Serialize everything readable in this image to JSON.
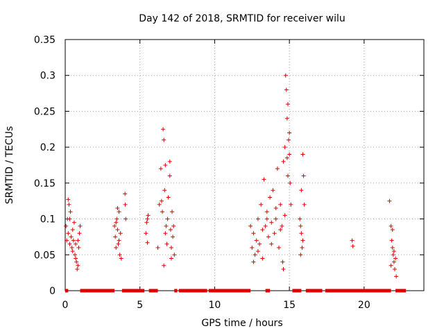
{
  "chart_data": {
    "type": "scatter",
    "title": "Day 142 of 2018, SRMTID for receiver wilu",
    "xlabel": "GPS time / hours",
    "ylabel": "SRMTID / TECUs",
    "xlim": [
      0,
      24
    ],
    "ylim": [
      0,
      0.35
    ],
    "xticks": [
      0,
      5,
      10,
      15,
      20
    ],
    "xtick_labels": [
      "0",
      "5",
      "10",
      "15",
      "20"
    ],
    "yticks": [
      0,
      0.05,
      0.1,
      0.15,
      0.2,
      0.25,
      0.3,
      0.35
    ],
    "ytick_labels": [
      "0",
      "0.05",
      "0.1",
      "0.15",
      "0.2",
      "0.25",
      "0.3",
      "0.35"
    ],
    "grid": true,
    "marker": "+",
    "series_color": "#dd0000",
    "series": [
      {
        "name": "SRMTID",
        "points": [
          [
            0.05,
            0.09
          ],
          [
            0.1,
            0.07
          ],
          [
            0.15,
            0.1
          ],
          [
            0.2,
            0.08
          ],
          [
            0.25,
            0.12
          ],
          [
            0.3,
            0.065
          ],
          [
            0.35,
            0.11
          ],
          [
            0.4,
            0.075
          ],
          [
            0.45,
            0.06
          ],
          [
            0.5,
            0.085
          ],
          [
            0.55,
            0.07
          ],
          [
            0.6,
            0.095
          ],
          [
            0.65,
            0.05
          ],
          [
            0.7,
            0.065
          ],
          [
            0.75,
            0.04
          ],
          [
            0.8,
            0.03
          ],
          [
            0.85,
            0.07
          ],
          [
            0.9,
            0.06
          ],
          [
            0.95,
            0.08
          ],
          [
            1.0,
            0.09
          ],
          [
            0.2,
            0.127
          ],
          [
            0.3,
            0.1
          ],
          [
            0.5,
            0.055
          ],
          [
            0.7,
            0.045
          ],
          [
            0.85,
            0.035
          ],
          [
            3.3,
            0.09
          ],
          [
            3.35,
            0.075
          ],
          [
            3.4,
            0.06
          ],
          [
            3.45,
            0.1
          ],
          [
            3.5,
            0.085
          ],
          [
            3.55,
            0.065
          ],
          [
            3.6,
            0.11
          ],
          [
            3.65,
            0.05
          ],
          [
            3.7,
            0.08
          ],
          [
            3.75,
            0.045
          ],
          [
            3.5,
            0.115
          ],
          [
            3.6,
            0.07
          ],
          [
            3.4,
            0.095
          ],
          [
            4.0,
            0.135
          ],
          [
            4.02,
            0.12
          ],
          [
            4.05,
            0.1
          ],
          [
            5.4,
            0.08
          ],
          [
            5.45,
            0.095
          ],
          [
            5.5,
            0.1
          ],
          [
            5.55,
            0.105
          ],
          [
            5.5,
            0.067
          ],
          [
            6.2,
            0.06
          ],
          [
            6.3,
            0.12
          ],
          [
            6.4,
            0.17
          ],
          [
            6.5,
            0.11
          ],
          [
            6.55,
            0.225
          ],
          [
            6.6,
            0.21
          ],
          [
            6.65,
            0.14
          ],
          [
            6.7,
            0.175
          ],
          [
            6.75,
            0.09
          ],
          [
            6.8,
            0.065
          ],
          [
            6.85,
            0.1
          ],
          [
            6.9,
            0.13
          ],
          [
            7.0,
            0.18
          ],
          [
            7.05,
            0.085
          ],
          [
            7.1,
            0.06
          ],
          [
            7.15,
            0.11
          ],
          [
            7.2,
            0.075
          ],
          [
            7.25,
            0.09
          ],
          [
            7.3,
            0.05
          ],
          [
            6.6,
            0.035
          ],
          [
            7.0,
            0.16
          ],
          [
            6.45,
            0.125
          ],
          [
            6.7,
            0.08
          ],
          [
            7.1,
            0.045
          ],
          [
            12.4,
            0.09
          ],
          [
            12.5,
            0.06
          ],
          [
            12.6,
            0.08
          ],
          [
            12.7,
            0.05
          ],
          [
            12.8,
            0.07
          ],
          [
            12.9,
            0.1
          ],
          [
            13.0,
            0.065
          ],
          [
            13.1,
            0.12
          ],
          [
            13.2,
            0.085
          ],
          [
            13.3,
            0.155
          ],
          [
            13.4,
            0.09
          ],
          [
            13.5,
            0.11
          ],
          [
            13.6,
            0.075
          ],
          [
            13.7,
            0.13
          ],
          [
            13.8,
            0.095
          ],
          [
            13.9,
            0.14
          ],
          [
            14.0,
            0.08
          ],
          [
            14.1,
            0.1
          ],
          [
            14.2,
            0.17
          ],
          [
            14.3,
            0.06
          ],
          [
            14.4,
            0.12
          ],
          [
            14.5,
            0.09
          ],
          [
            14.55,
            0.04
          ],
          [
            14.6,
            0.18
          ],
          [
            14.7,
            0.2
          ],
          [
            14.75,
            0.3
          ],
          [
            14.8,
            0.28
          ],
          [
            14.85,
            0.24
          ],
          [
            14.9,
            0.26
          ],
          [
            14.95,
            0.21
          ],
          [
            15.0,
            0.19
          ],
          [
            15.05,
            0.15
          ],
          [
            15.1,
            0.12
          ],
          [
            12.6,
            0.04
          ],
          [
            12.9,
            0.055
          ],
          [
            13.2,
            0.045
          ],
          [
            13.5,
            0.1
          ],
          [
            13.8,
            0.065
          ],
          [
            14.1,
            0.115
          ],
          [
            14.4,
            0.085
          ],
          [
            14.6,
            0.03
          ],
          [
            14.9,
            0.16
          ],
          [
            15.0,
            0.22
          ],
          [
            14.85,
            0.185
          ],
          [
            14.7,
            0.105
          ],
          [
            15.7,
            0.1
          ],
          [
            15.75,
            0.09
          ],
          [
            15.8,
            0.08
          ],
          [
            15.85,
            0.06
          ],
          [
            15.9,
            0.19
          ],
          [
            15.95,
            0.16
          ],
          [
            16.0,
            0.12
          ],
          [
            15.8,
            0.14
          ],
          [
            15.9,
            0.07
          ],
          [
            15.75,
            0.05
          ],
          [
            19.2,
            0.07
          ],
          [
            19.25,
            0.062
          ],
          [
            21.7,
            0.125
          ],
          [
            21.8,
            0.09
          ],
          [
            21.85,
            0.07
          ],
          [
            21.9,
            0.06
          ],
          [
            21.95,
            0.05
          ],
          [
            22.0,
            0.04
          ],
          [
            22.05,
            0.03
          ],
          [
            22.1,
            0.045
          ],
          [
            22.15,
            0.02
          ],
          [
            21.9,
            0.085
          ],
          [
            22.0,
            0.055
          ],
          [
            21.8,
            0.035
          ]
        ],
        "zero_segments": [
          [
            0.0,
            0.2
          ],
          [
            1.0,
            3.3
          ],
          [
            3.8,
            5.3
          ],
          [
            5.6,
            6.2
          ],
          [
            7.3,
            7.5
          ],
          [
            7.6,
            9.5
          ],
          [
            9.6,
            12.4
          ],
          [
            13.4,
            13.7
          ],
          [
            15.2,
            15.8
          ],
          [
            16.1,
            17.2
          ],
          [
            17.4,
            21.8
          ],
          [
            22.1,
            22.8
          ]
        ]
      }
    ]
  }
}
